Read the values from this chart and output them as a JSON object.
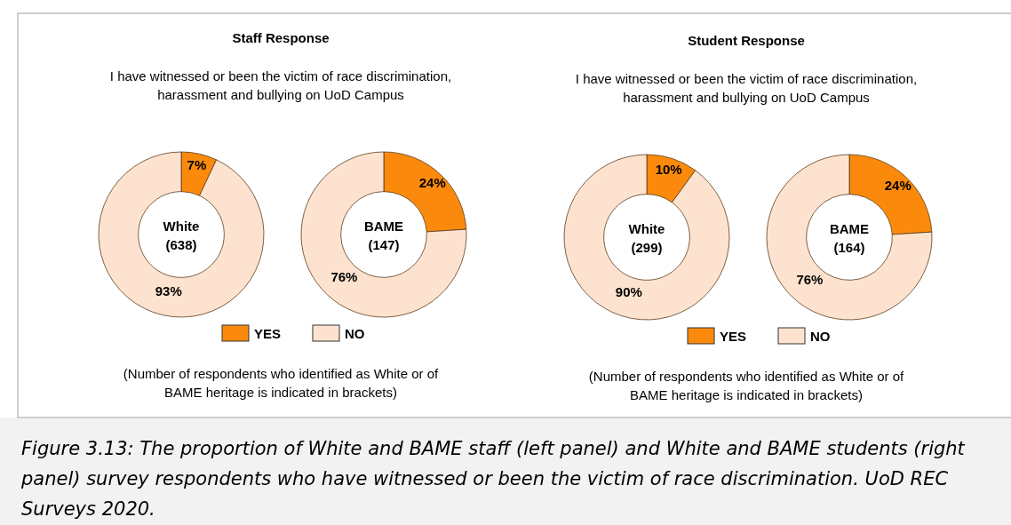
{
  "chart_data": [
    {
      "type": "donut",
      "title": "Staff Response",
      "subtitle": "I have witnessed or been the victim of race discrimination, harassment and bullying on UoD Campus",
      "categories": [
        "YES",
        "NO"
      ],
      "values": [
        7,
        93
      ],
      "colors": [
        "#fb8a0c",
        "#fde3cf"
      ],
      "value_labels": [
        "7%",
        "93%"
      ],
      "legend": "bottom",
      "annotations": [
        "White (638)",
        "(Number of respondents who identified as White or of BAME heritage is indicated in brackets)",
        "Figure 3.13: The proportion of White and BAME staff (left panel) and White and BAME students (right panel) survey respondents who have witnessed or been the victim of race discrimination. UoD REC Surveys 2020."
      ]
    },
    {
      "type": "donut",
      "categories": [
        null,
        null
      ],
      "values": [
        24,
        76
      ],
      "colors": [
        "#fb8a0c",
        "#fde3cf"
      ],
      "value_labels": [
        "24%",
        "76%"
      ],
      "annotations": [
        "BAME (147)"
      ]
    },
    {
      "type": "donut",
      "title": "Student Response",
      "subtitle": "I have witnessed or been the victim of race discrimination, harassment and bullying on UoD Campus",
      "categories": [
        "YES",
        "NO"
      ],
      "values": [
        10,
        90
      ],
      "colors": [
        "#fb8a0c",
        "#fde3cf"
      ],
      "value_labels": [
        "10%",
        "90%"
      ],
      "legend": "bottom",
      "annotations": [
        "White (299)",
        "(Number of respondents who identified as White or of BAME heritage is indicated in brackets)"
      ]
    },
    {
      "type": "donut",
      "categories": [
        null,
        null
      ],
      "values": [
        24,
        76
      ],
      "colors": [
        "#fb8a0c",
        "#fde3cf"
      ],
      "value_labels": [
        "24%",
        "76%"
      ],
      "annotations": [
        "BAME (164)"
      ]
    }
  ]
}
